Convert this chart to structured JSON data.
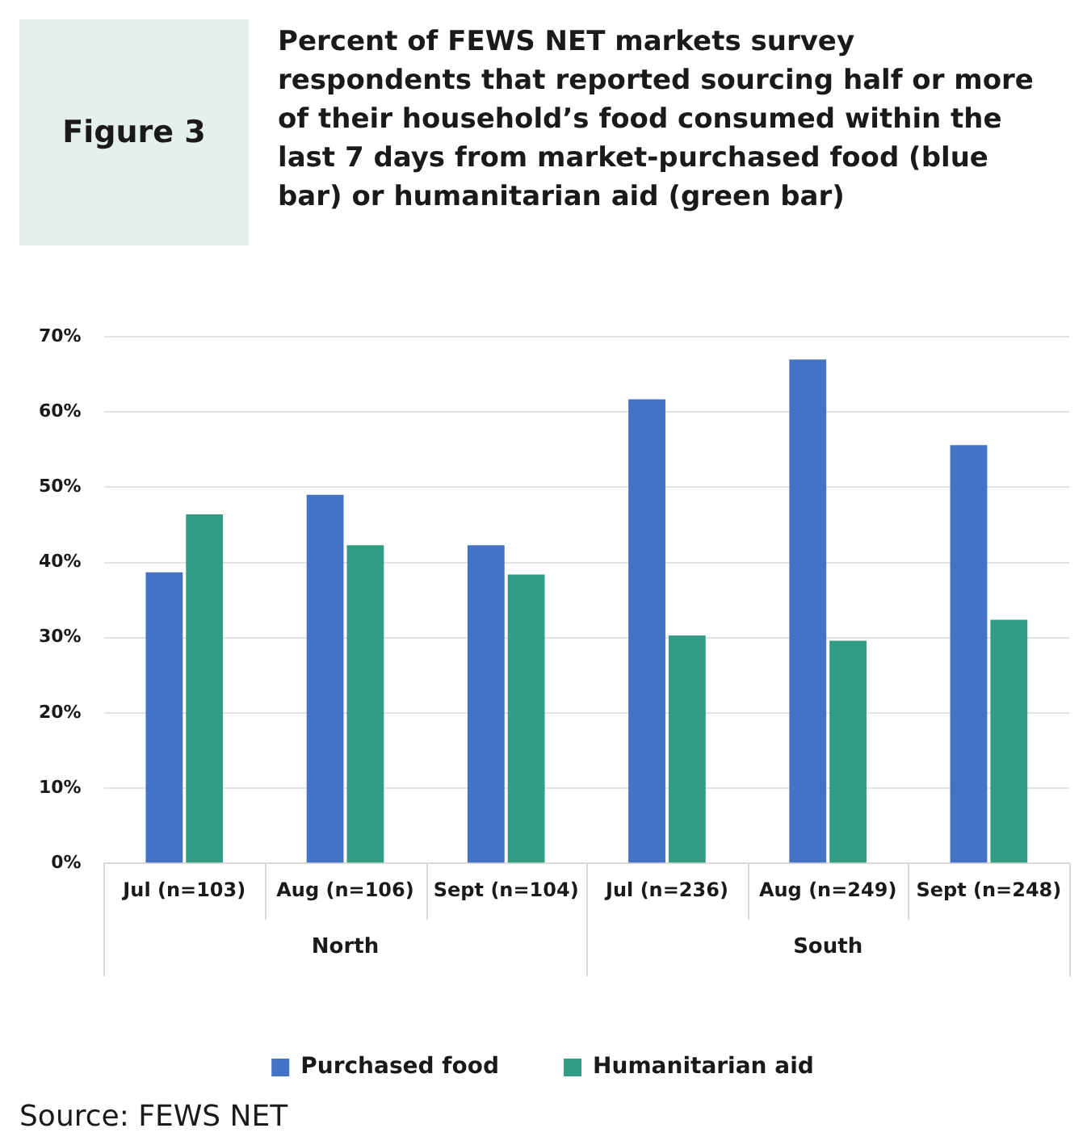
{
  "chart_data": {
    "type": "bar",
    "title": "Percent of FEWS NET markets survey respondents that reported sourcing half or more of their household’s food consumed within the last 7 days from market-purchased food (blue bar) or humanitarian aid (green bar)",
    "categories": [
      "Jul (n=103)",
      "Aug (n=106)",
      "Sept (n=104)",
      "Jul (n=236)",
      "Aug (n=249)",
      "Sept (n=248)"
    ],
    "series": [
      {
        "name": "Purchased food",
        "color": "#4472c4",
        "values": [
          38.7,
          49.0,
          42.3,
          61.7,
          67.0,
          55.6
        ]
      },
      {
        "name": "Humanitarian aid",
        "color": "#339c85",
        "values": [
          46.4,
          42.3,
          38.4,
          30.3,
          29.6,
          32.4
        ]
      }
    ],
    "ylim": [
      0,
      70
    ],
    "yticks": [
      {
        "value": 0,
        "label": "0%"
      },
      {
        "value": 10,
        "label": "10%"
      },
      {
        "value": 20,
        "label": "20%"
      },
      {
        "value": 30,
        "label": "30%"
      },
      {
        "value": 40,
        "label": "40%"
      },
      {
        "value": 50,
        "label": "50%"
      },
      {
        "value": 60,
        "label": "60%"
      },
      {
        "value": 70,
        "label": "70%"
      }
    ],
    "grid": "y",
    "legend": "bottom",
    "annotations": [
      "Figure 3",
      "North",
      "South",
      "Source: FEWS NET"
    ]
  }
}
